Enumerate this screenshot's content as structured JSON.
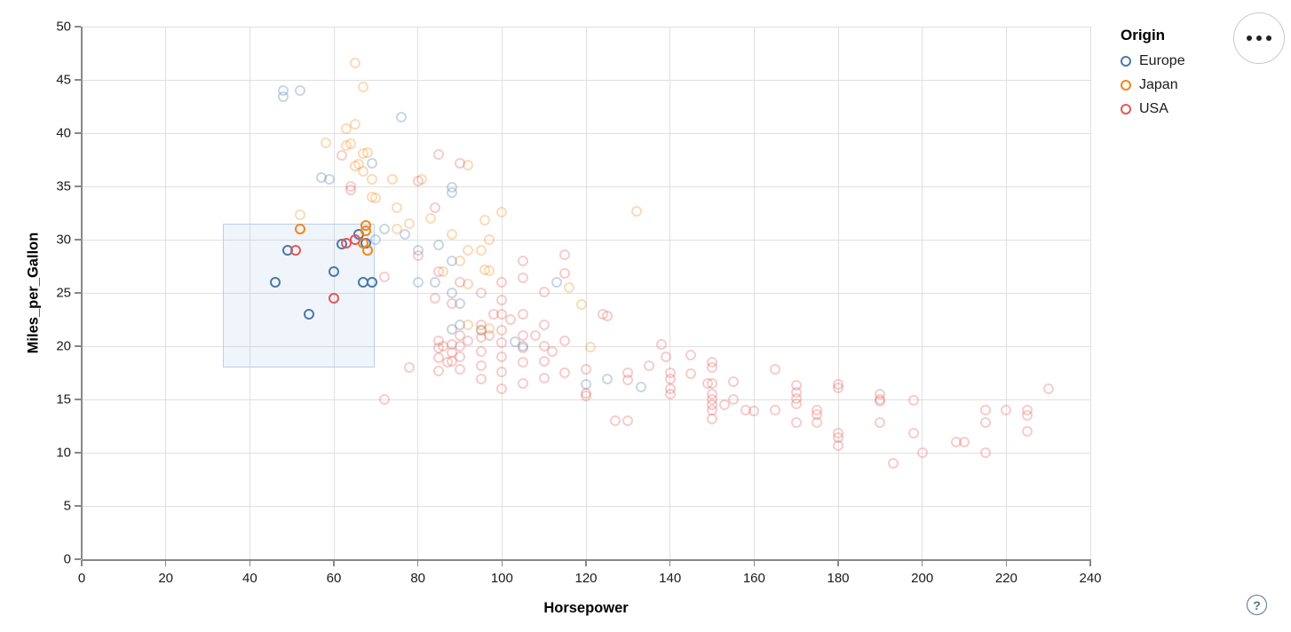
{
  "chart_data": {
    "type": "scatter",
    "xlabel": "Horsepower",
    "ylabel": "Miles_per_Gallon",
    "x_domain": [
      0,
      240
    ],
    "y_domain": [
      0,
      50
    ],
    "x_ticks": [
      0,
      20,
      40,
      60,
      80,
      100,
      120,
      140,
      160,
      180,
      200,
      220,
      240
    ],
    "y_ticks": [
      0,
      5,
      10,
      15,
      20,
      25,
      30,
      35,
      40,
      45,
      50
    ],
    "grid": true,
    "legend": {
      "title": "Origin",
      "position": "top-right",
      "entries": [
        {
          "label": "Europe",
          "color": "#4c78a8"
        },
        {
          "label": "Japan",
          "color": "#f58518"
        },
        {
          "label": "USA",
          "color": "#e45756"
        }
      ]
    },
    "origin_colors": {
      "E": "#4c78a8",
      "J": "#f58518",
      "U": "#e45756"
    },
    "origin_names": {
      "E": "Europe",
      "J": "Japan",
      "U": "USA"
    },
    "unselected_opacity": 0.3,
    "brush": {
      "x0": 33.5,
      "x1": 69.8,
      "y0": 18,
      "y1": 31.5,
      "fill": "#6e9fd4",
      "fill_opacity": 0.1,
      "stroke": "#b7cff2"
    },
    "points": [
      [
        "E",
        46,
        26,
        1
      ],
      [
        "E",
        49,
        29,
        1
      ],
      [
        "E",
        54,
        23,
        1
      ],
      [
        "E",
        60,
        27,
        1
      ],
      [
        "E",
        62,
        29.6,
        1
      ],
      [
        "E",
        66,
        30.5,
        1
      ],
      [
        "E",
        67.5,
        29.7,
        1
      ],
      [
        "E",
        67,
        26,
        1
      ],
      [
        "E",
        69,
        26,
        1
      ],
      [
        "J",
        52,
        31,
        1
      ],
      [
        "J",
        67.5,
        31.3,
        1
      ],
      [
        "J",
        67.5,
        30.8,
        1
      ],
      [
        "J",
        68,
        29,
        1
      ],
      [
        "J",
        67,
        29.7,
        1
      ],
      [
        "U",
        51,
        29,
        1
      ],
      [
        "U",
        60,
        24.5,
        1
      ],
      [
        "U",
        63,
        29.7,
        1
      ],
      [
        "U",
        65,
        30,
        1
      ],
      [
        "E",
        48,
        44,
        0
      ],
      [
        "E",
        48,
        43.4,
        0
      ],
      [
        "E",
        52,
        44,
        0
      ],
      [
        "E",
        76,
        41.5,
        0
      ],
      [
        "E",
        69,
        37.2,
        0
      ],
      [
        "E",
        57,
        35.8,
        0
      ],
      [
        "E",
        59,
        35.7,
        0
      ],
      [
        "E",
        88,
        34.9,
        0
      ],
      [
        "E",
        88,
        34.4,
        0
      ],
      [
        "J",
        65,
        46.6,
        0
      ],
      [
        "J",
        67,
        44.3,
        0
      ],
      [
        "J",
        65,
        40.8,
        0
      ],
      [
        "J",
        63,
        40.4,
        0
      ],
      [
        "J",
        58,
        39.1,
        0
      ],
      [
        "J",
        63,
        38.8,
        0
      ],
      [
        "J",
        64,
        39,
        0
      ],
      [
        "J",
        67,
        38.1,
        0
      ],
      [
        "J",
        68,
        38.2,
        0
      ],
      [
        "J",
        66,
        37.1,
        0
      ],
      [
        "J",
        65,
        36.9,
        0
      ],
      [
        "J",
        67,
        36.4,
        0
      ],
      [
        "J",
        69,
        35.7,
        0
      ],
      [
        "J",
        74,
        35.7,
        0
      ],
      [
        "J",
        81,
        35.7,
        0
      ],
      [
        "J",
        92,
        37,
        0
      ],
      [
        "U",
        62,
        37.9,
        0
      ],
      [
        "U",
        85,
        38,
        0
      ],
      [
        "U",
        90,
        37.2,
        0
      ],
      [
        "U",
        80,
        35.5,
        0
      ],
      [
        "J",
        70,
        33.9,
        0
      ],
      [
        "J",
        69,
        34,
        0
      ],
      [
        "J",
        75,
        33,
        0
      ],
      [
        "J",
        100,
        32.6,
        0
      ],
      [
        "J",
        132,
        32.7,
        0
      ],
      [
        "J",
        52,
        32.3,
        0
      ],
      [
        "J",
        96,
        31.8,
        0
      ],
      [
        "U",
        64,
        34.7,
        0
      ],
      [
        "U",
        64,
        35,
        0
      ],
      [
        "U",
        84,
        33,
        0
      ],
      [
        "E",
        70,
        30,
        0
      ],
      [
        "E",
        72,
        31,
        0
      ],
      [
        "E",
        77,
        30.5,
        0
      ],
      [
        "E",
        80,
        29,
        0
      ],
      [
        "E",
        85,
        29.5,
        0
      ],
      [
        "E",
        88,
        28,
        0
      ],
      [
        "E",
        80,
        26,
        0
      ],
      [
        "E",
        84,
        26,
        0
      ],
      [
        "E",
        88,
        25,
        0
      ],
      [
        "E",
        90,
        24,
        0
      ],
      [
        "E",
        113,
        26,
        0
      ],
      [
        "J",
        75,
        31,
        0
      ],
      [
        "J",
        78,
        31.5,
        0
      ],
      [
        "J",
        83,
        32,
        0
      ],
      [
        "J",
        88,
        30.5,
        0
      ],
      [
        "J",
        92,
        29,
        0
      ],
      [
        "J",
        97,
        30,
        0
      ],
      [
        "J",
        95,
        29,
        0
      ],
      [
        "J",
        86,
        27,
        0
      ],
      [
        "J",
        92,
        25.8,
        0
      ],
      [
        "J",
        97,
        27.1,
        0
      ],
      [
        "J",
        96,
        27.2,
        0
      ],
      [
        "J",
        90,
        28,
        0
      ],
      [
        "J",
        116,
        25.5,
        0
      ],
      [
        "J",
        119,
        23.9,
        0
      ],
      [
        "U",
        72,
        26.5,
        0
      ],
      [
        "U",
        80,
        28.5,
        0
      ],
      [
        "U",
        85,
        27,
        0
      ],
      [
        "U",
        90,
        26,
        0
      ],
      [
        "U",
        88,
        24,
        0
      ],
      [
        "U",
        84,
        24.5,
        0
      ],
      [
        "U",
        95,
        25,
        0
      ],
      [
        "U",
        100,
        26,
        0
      ],
      [
        "U",
        105,
        26.4,
        0
      ],
      [
        "U",
        105,
        28,
        0
      ],
      [
        "U",
        110,
        25.1,
        0
      ],
      [
        "U",
        115,
        26.8,
        0
      ],
      [
        "U",
        115,
        28.6,
        0
      ],
      [
        "U",
        100,
        24.3,
        0
      ],
      [
        "U",
        85,
        20.5,
        0
      ],
      [
        "U",
        85,
        19.8,
        0
      ],
      [
        "U",
        85,
        18.9,
        0
      ],
      [
        "U",
        86,
        20,
        0
      ],
      [
        "U",
        87,
        18.5,
        0
      ],
      [
        "U",
        88,
        20.2,
        0
      ],
      [
        "U",
        88,
        19.4,
        0
      ],
      [
        "U",
        88,
        18.6,
        0
      ],
      [
        "U",
        90,
        21,
        0
      ],
      [
        "U",
        90,
        20,
        0
      ],
      [
        "U",
        90,
        19,
        0
      ],
      [
        "U",
        92,
        20.5,
        0
      ],
      [
        "U",
        95,
        22,
        0
      ],
      [
        "U",
        95,
        20.8,
        0
      ],
      [
        "U",
        95,
        19.5,
        0
      ],
      [
        "U",
        97,
        21,
        0
      ],
      [
        "U",
        98,
        23,
        0
      ],
      [
        "U",
        100,
        23,
        0
      ],
      [
        "U",
        100,
        21.5,
        0
      ],
      [
        "U",
        100,
        20.3,
        0
      ],
      [
        "U",
        100,
        19,
        0
      ],
      [
        "U",
        102,
        22.5,
        0
      ],
      [
        "U",
        105,
        23,
        0
      ],
      [
        "U",
        105,
        21,
        0
      ],
      [
        "U",
        105,
        19.8,
        0
      ],
      [
        "U",
        108,
        21,
        0
      ],
      [
        "U",
        110,
        22,
        0
      ],
      [
        "U",
        110,
        20,
        0
      ],
      [
        "U",
        110,
        18.6,
        0
      ],
      [
        "U",
        112,
        19.5,
        0
      ],
      [
        "U",
        115,
        20.5,
        0
      ],
      [
        "U",
        124,
        23,
        0
      ],
      [
        "U",
        125,
        22.8,
        0
      ],
      [
        "E",
        90,
        22,
        0
      ],
      [
        "E",
        88,
        21.6,
        0
      ],
      [
        "E",
        95,
        21.5,
        0
      ],
      [
        "E",
        103,
        20.4,
        0
      ],
      [
        "E",
        105,
        20,
        0
      ],
      [
        "J",
        92,
        22,
        0
      ],
      [
        "J",
        95,
        21.5,
        0
      ],
      [
        "J",
        97,
        21.7,
        0
      ],
      [
        "J",
        121,
        19.9,
        0
      ],
      [
        "U",
        85,
        17.7,
        0
      ],
      [
        "U",
        90,
        17.8,
        0
      ],
      [
        "U",
        95,
        18.2,
        0
      ],
      [
        "U",
        95,
        16.9,
        0
      ],
      [
        "U",
        100,
        17.6,
        0
      ],
      [
        "U",
        100,
        16,
        0
      ],
      [
        "U",
        105,
        18.5,
        0
      ],
      [
        "U",
        105,
        16.5,
        0
      ],
      [
        "U",
        110,
        17,
        0
      ],
      [
        "U",
        115,
        17.5,
        0
      ],
      [
        "U",
        72,
        15,
        0
      ],
      [
        "U",
        78,
        18,
        0
      ],
      [
        "U",
        120,
        17.8,
        0
      ],
      [
        "U",
        120,
        15.6,
        0
      ],
      [
        "U",
        120,
        15.3,
        0
      ],
      [
        "U",
        130,
        17.5,
        0
      ],
      [
        "U",
        130,
        16.8,
        0
      ],
      [
        "U",
        127,
        13,
        0
      ],
      [
        "U",
        130,
        13,
        0
      ],
      [
        "U",
        135,
        18.2,
        0
      ],
      [
        "E",
        125,
        16.9,
        0
      ],
      [
        "E",
        120,
        16.4,
        0
      ],
      [
        "E",
        133,
        16.2,
        0
      ],
      [
        "U",
        138,
        20.2,
        0
      ],
      [
        "U",
        139,
        19,
        0
      ],
      [
        "U",
        140,
        17.5,
        0
      ],
      [
        "U",
        140,
        16.9,
        0
      ],
      [
        "U",
        140,
        16,
        0
      ],
      [
        "U",
        140,
        15.5,
        0
      ],
      [
        "U",
        145,
        19.2,
        0
      ],
      [
        "U",
        145,
        17.4,
        0
      ],
      [
        "U",
        149,
        16.5,
        0
      ],
      [
        "U",
        150,
        18.5,
        0
      ],
      [
        "U",
        150,
        18,
        0
      ],
      [
        "U",
        150,
        16.5,
        0
      ],
      [
        "U",
        150,
        15.5,
        0
      ],
      [
        "U",
        150,
        15,
        0
      ],
      [
        "U",
        150,
        14.5,
        0
      ],
      [
        "U",
        150,
        14,
        0
      ],
      [
        "U",
        150,
        13.2,
        0
      ],
      [
        "U",
        153,
        14.5,
        0
      ],
      [
        "U",
        155,
        16.7,
        0
      ],
      [
        "U",
        155,
        15,
        0
      ],
      [
        "U",
        158,
        14,
        0
      ],
      [
        "U",
        160,
        13.9,
        0
      ],
      [
        "U",
        165,
        14,
        0
      ],
      [
        "U",
        165,
        17.8,
        0
      ],
      [
        "U",
        170,
        16.3,
        0
      ],
      [
        "U",
        170,
        15.7,
        0
      ],
      [
        "U",
        170,
        15.1,
        0
      ],
      [
        "U",
        170,
        14.6,
        0
      ],
      [
        "U",
        170,
        12.8,
        0
      ],
      [
        "U",
        175,
        14,
        0
      ],
      [
        "U",
        175,
        13.6,
        0
      ],
      [
        "U",
        175,
        12.8,
        0
      ],
      [
        "U",
        180,
        16.4,
        0
      ],
      [
        "U",
        180,
        16.1,
        0
      ],
      [
        "U",
        180,
        11.8,
        0
      ],
      [
        "U",
        180,
        11.4,
        0
      ],
      [
        "U",
        180,
        10.7,
        0
      ],
      [
        "U",
        190,
        15.5,
        0
      ],
      [
        "U",
        190,
        15,
        0
      ],
      [
        "U",
        190,
        14.8,
        0
      ],
      [
        "U",
        190,
        12.8,
        0
      ],
      [
        "U",
        193,
        9,
        0
      ],
      [
        "U",
        198,
        14.9,
        0
      ],
      [
        "U",
        198,
        11.8,
        0
      ],
      [
        "U",
        200,
        10,
        0
      ],
      [
        "U",
        208,
        11,
        0
      ],
      [
        "U",
        210,
        11,
        0
      ],
      [
        "U",
        215,
        14,
        0
      ],
      [
        "U",
        215,
        12.8,
        0
      ],
      [
        "U",
        215,
        10,
        0
      ],
      [
        "U",
        220,
        14,
        0
      ],
      [
        "U",
        225,
        14,
        0
      ],
      [
        "U",
        225,
        13.5,
        0
      ],
      [
        "U",
        225,
        12,
        0
      ],
      [
        "U",
        230,
        16,
        0
      ]
    ]
  },
  "controls": {
    "menu_button": "chart actions menu",
    "help_label": "?"
  }
}
